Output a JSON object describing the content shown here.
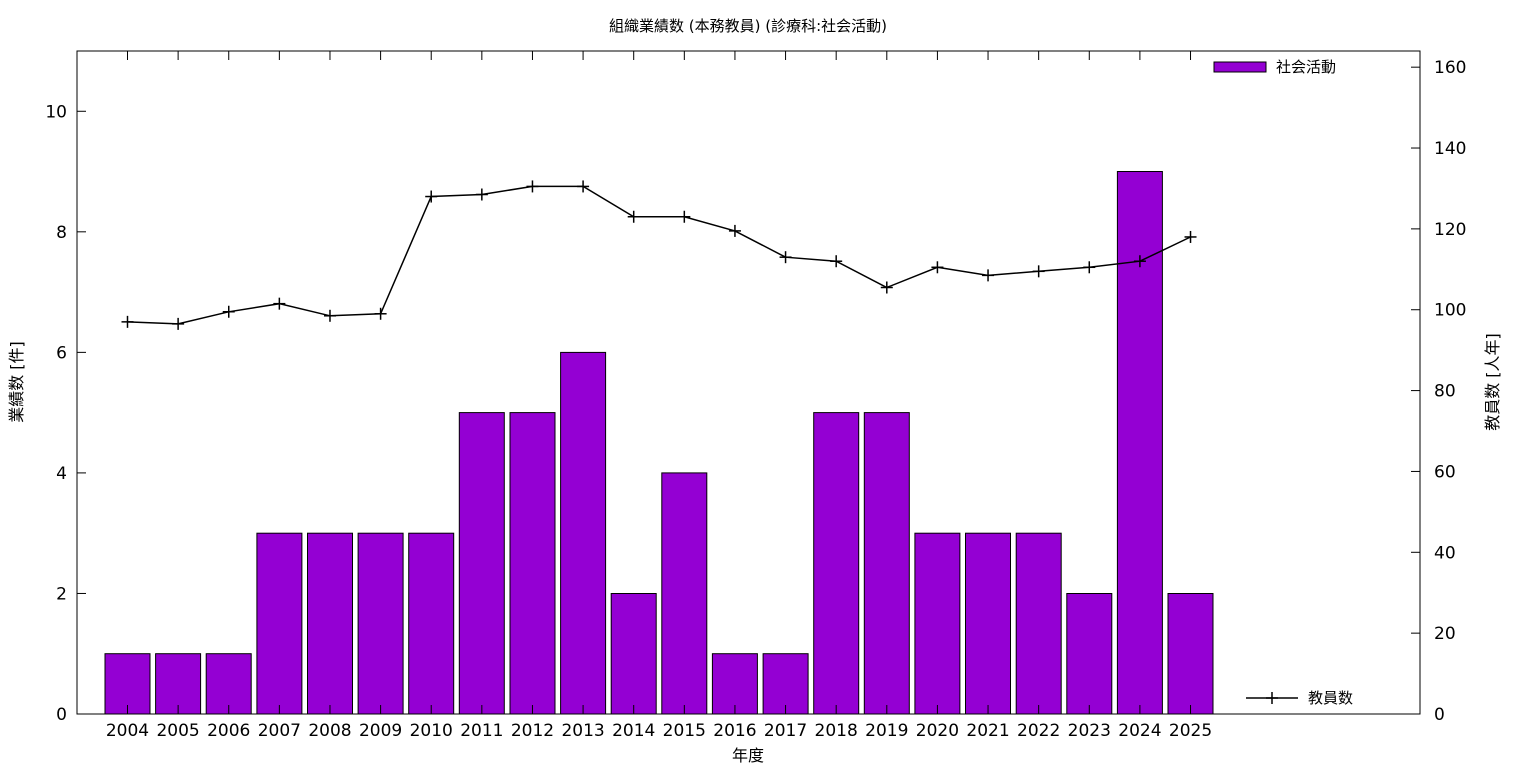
{
  "chart_data": {
    "type": "bar",
    "title": "組織業績数 (本務教員) (診療科:社会活動)",
    "xlabel": "年度",
    "ylabel": "業績数 [件]",
    "y2label": "教員数 [人年]",
    "categories": [
      "2004",
      "2005",
      "2006",
      "2007",
      "2008",
      "2009",
      "2010",
      "2011",
      "2012",
      "2013",
      "2014",
      "2015",
      "2016",
      "2017",
      "2018",
      "2019",
      "2020",
      "2021",
      "2022",
      "2023",
      "2024",
      "2025"
    ],
    "ylim": [
      0,
      11
    ],
    "yticks": [
      0,
      2,
      4,
      6,
      8,
      10
    ],
    "y2lim": [
      0,
      164
    ],
    "y2ticks": [
      0,
      20,
      40,
      60,
      80,
      100,
      120,
      140,
      160
    ],
    "grid": false,
    "series": [
      {
        "name": "社会活動",
        "type": "bar",
        "axis": "left",
        "color": "#9400d3",
        "values": [
          1,
          1,
          1,
          3,
          3,
          3,
          3,
          5,
          5,
          6,
          2,
          4,
          1,
          1,
          5,
          5,
          3,
          3,
          3,
          2,
          9,
          2
        ]
      },
      {
        "name": "教員数",
        "type": "line",
        "axis": "right",
        "color": "#000000",
        "values": [
          97,
          96.5,
          99.5,
          101.5,
          98.5,
          99,
          128,
          128.5,
          130.5,
          130.5,
          123,
          123,
          119.5,
          113,
          112,
          105.5,
          110.5,
          108.5,
          109.5,
          110.5,
          112,
          118
        ]
      }
    ],
    "legend": [
      {
        "label": "社会活動",
        "position": "top-right"
      },
      {
        "label": "教員数",
        "position": "bottom-right"
      }
    ]
  }
}
